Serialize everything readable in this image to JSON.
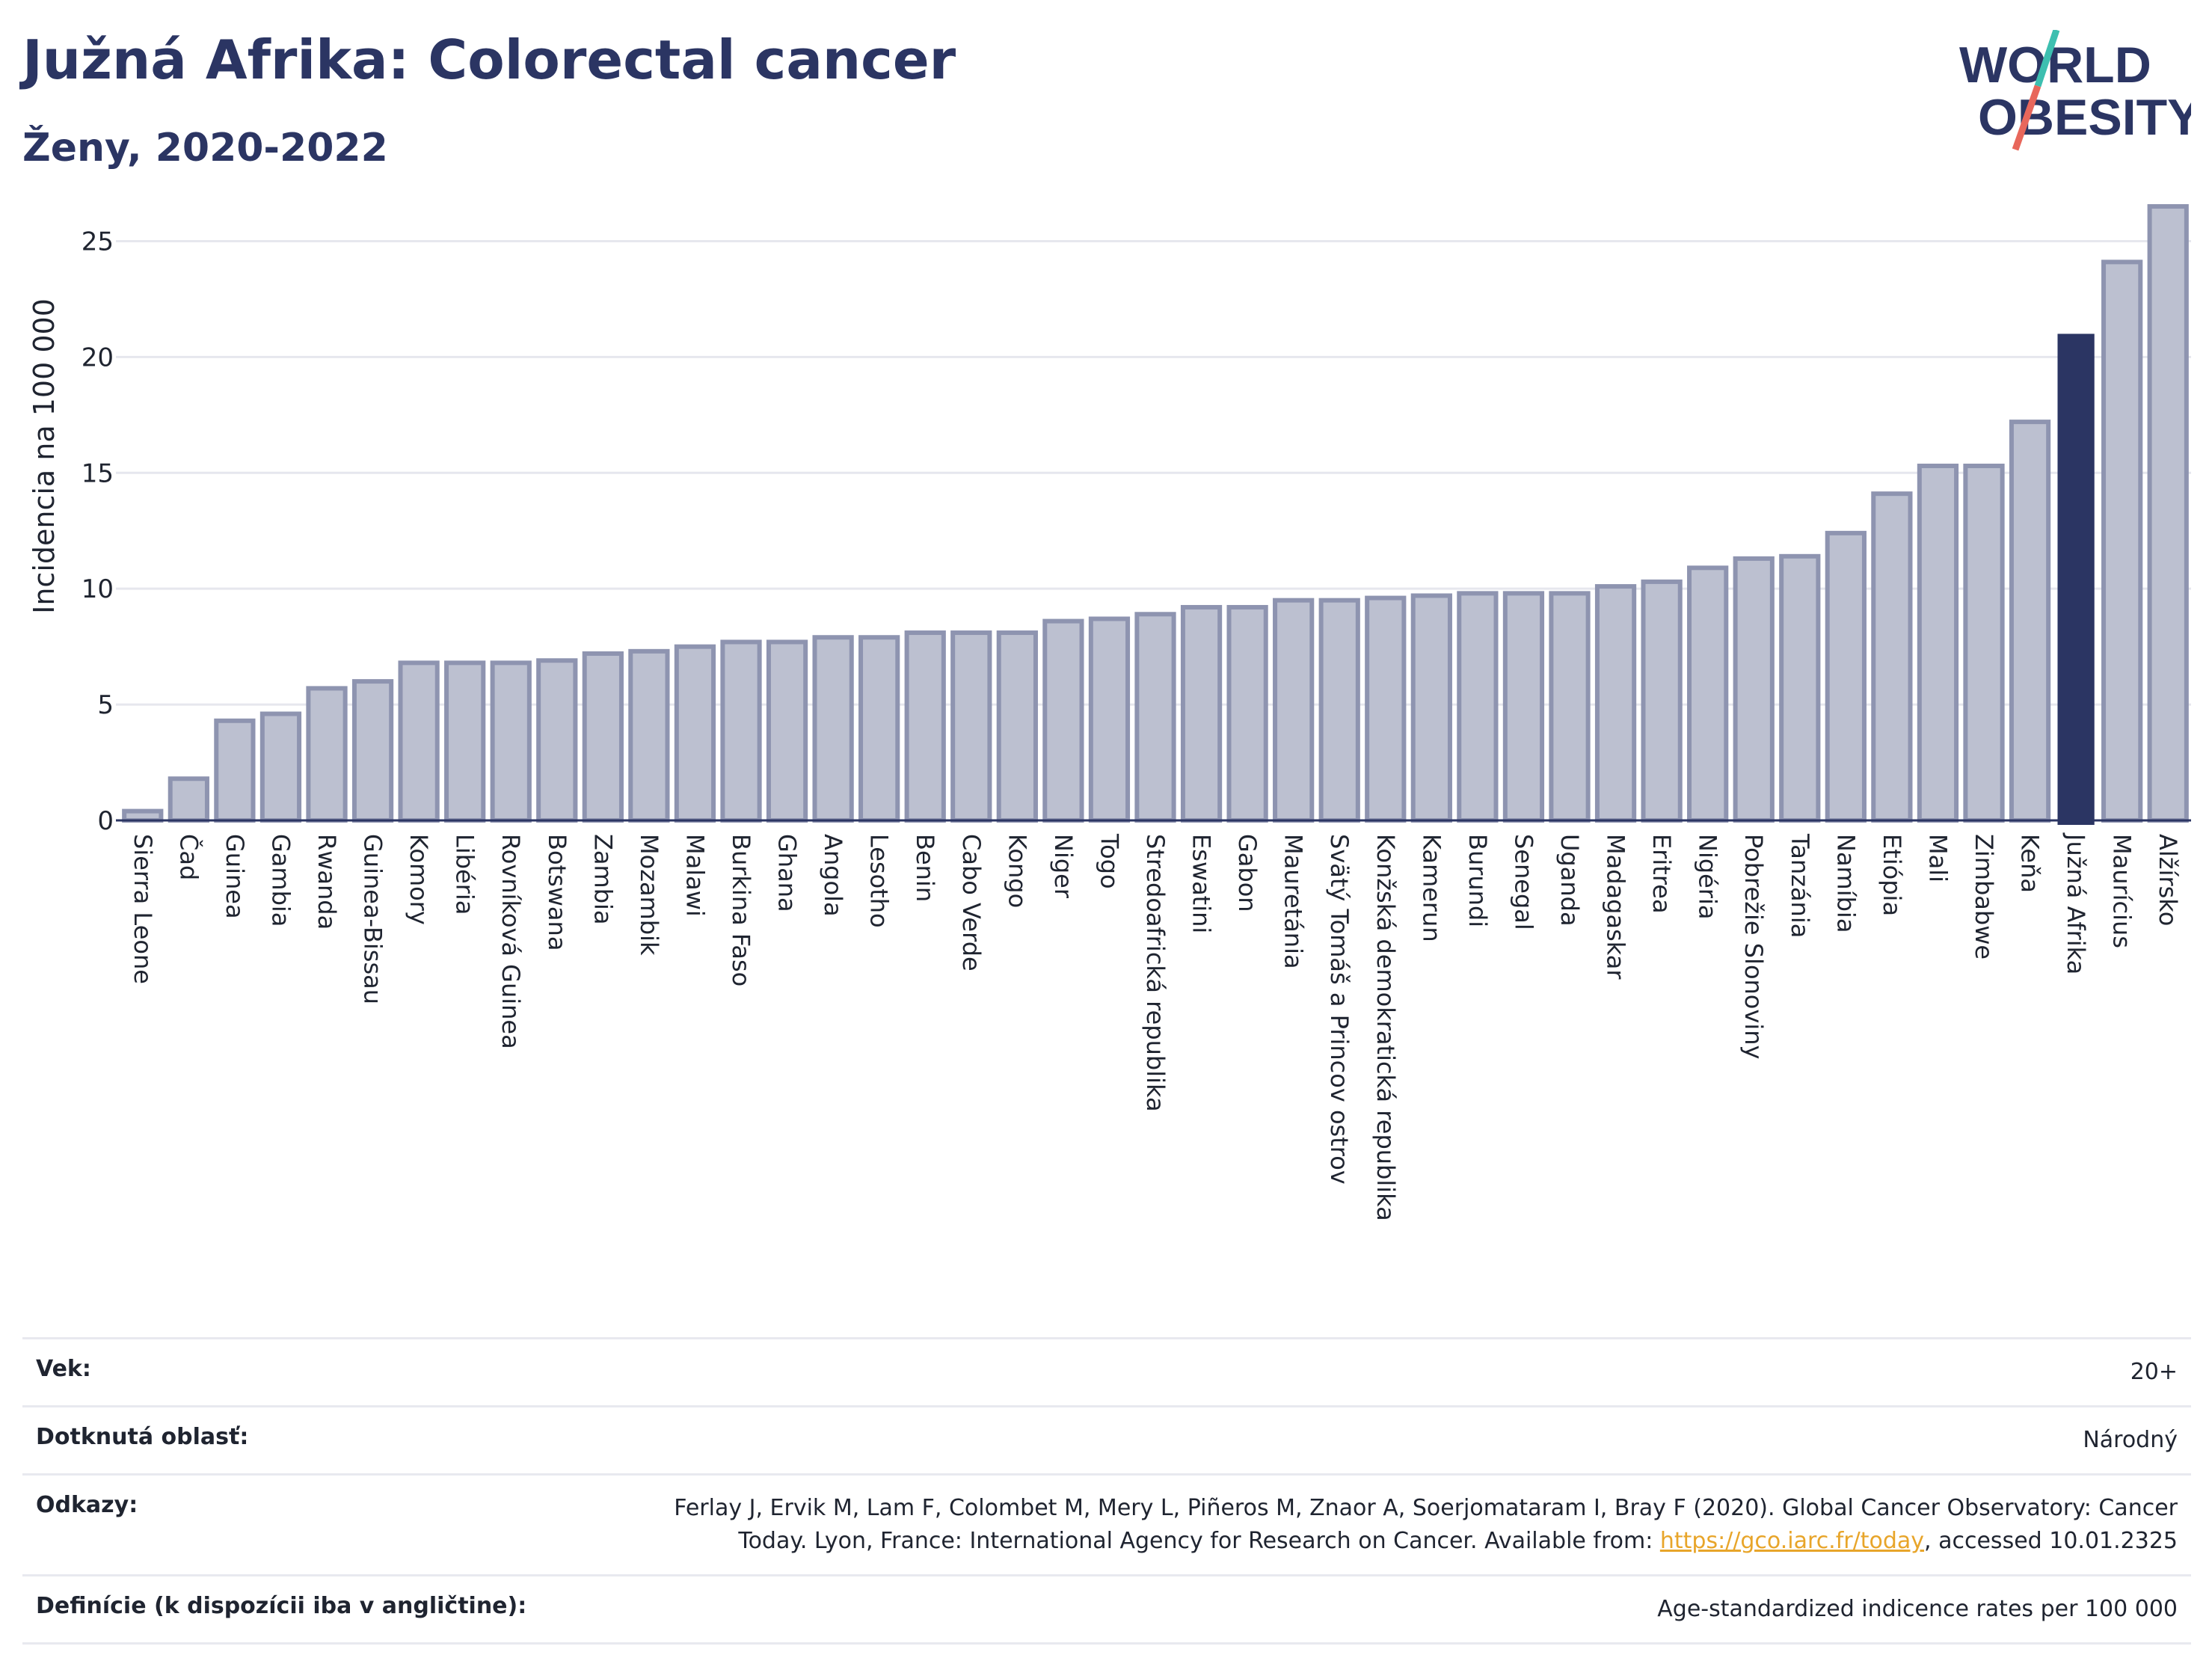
{
  "header": {
    "title": "Južná Afrika: Colorectal cancer",
    "subtitle": "Ženy, 2020-2022"
  },
  "logo": {
    "line1": "WORLD",
    "line2": "OBESITY"
  },
  "chart_data": {
    "type": "bar",
    "ylabel": "Incidencia na 100 000",
    "ylim": [
      0,
      27.5
    ],
    "yticks": [
      0,
      5,
      10,
      15,
      20,
      25
    ],
    "grid": true,
    "highlight": "Južná Afrika",
    "colors": {
      "bar": "#bcc0d0",
      "bar_edge": "#8e94b0",
      "highlight": "#2b3563"
    },
    "categories": [
      "Sierra Leone",
      "Čad",
      "Guinea",
      "Gambia",
      "Rwanda",
      "Guinea-Bissau",
      "Komory",
      "Libéria",
      "Rovníková Guinea",
      "Botswana",
      "Zambia",
      "Mozambik",
      "Malawi",
      "Burkina Faso",
      "Ghana",
      "Angola",
      "Lesotho",
      "Benin",
      "Cabo Verde",
      "Kongo",
      "Niger",
      "Togo",
      "Stredoafrická republika",
      "Eswatini",
      "Gabon",
      "Mauretánia",
      "Svätý Tomáš a Princov ostrov",
      "Konžská demokratická republika",
      "Kamerun",
      "Burundi",
      "Senegal",
      "Uganda",
      "Madagaskar",
      "Eritrea",
      "Nigéria",
      "Pobrežie Slonoviny",
      "Tanzánia",
      "Namíbia",
      "Etiópia",
      "Mali",
      "Zimbabwe",
      "Keňa",
      "Južná Afrika",
      "Maurícius",
      "Alžírsko"
    ],
    "values": [
      0.4,
      1.8,
      4.3,
      4.6,
      5.7,
      6.0,
      6.8,
      6.8,
      6.8,
      6.9,
      7.2,
      7.3,
      7.5,
      7.7,
      7.7,
      7.9,
      7.9,
      8.1,
      8.1,
      8.1,
      8.6,
      8.7,
      8.9,
      9.2,
      9.2,
      9.5,
      9.5,
      9.6,
      9.7,
      9.8,
      9.8,
      9.8,
      10.1,
      10.3,
      10.9,
      11.3,
      11.4,
      12.4,
      14.1,
      15.3,
      15.3,
      17.2,
      21.0,
      24.1,
      26.5
    ]
  },
  "info": {
    "rows": [
      {
        "key": "Vek:",
        "value": "20+"
      },
      {
        "key": "Dotknutá oblasť:",
        "value": "Národný"
      },
      {
        "key": "Odkazy:",
        "value_line1": "Ferlay J, Ervik M, Lam F, Colombet M, Mery L, Piñeros M, Znaor A, Soerjomataram I, Bray F (2020). Global Cancer Observatory: Cancer",
        "value_pre": "Today. Lyon, France: International Agency for Research on Cancer. Available from: ",
        "link": "https://gco.iarc.fr/today",
        "value_post": ", accessed 10.01.2325"
      },
      {
        "key": "Definície (k dispozícii iba v angličtine):",
        "value": "Age-standardized indicence rates per 100 000"
      }
    ]
  }
}
